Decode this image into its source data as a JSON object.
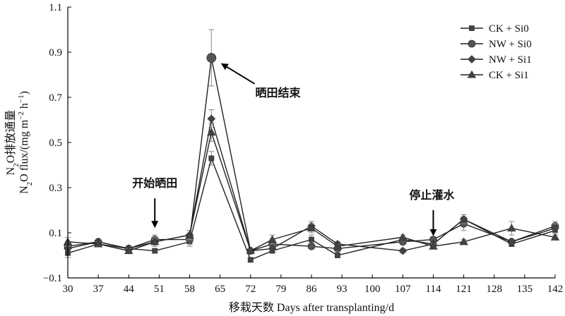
{
  "chart_data": {
    "type": "line",
    "xlabel": "移栽天数 Days after transplanting/d",
    "ylabel": {
      "line1": {
        "pre": "N",
        "sub": "2",
        "post": "O排放通量"
      },
      "line2": {
        "pre": "N",
        "sub": "2",
        "mid": "O flux/(mg m",
        "sup1": "−2",
        "mid2": " h",
        "sup2": "−1",
        "post": ")"
      }
    },
    "xlim": [
      30,
      142
    ],
    "ylim": [
      -0.1,
      1.1
    ],
    "xticks": [
      30,
      37,
      44,
      51,
      58,
      65,
      72,
      79,
      86,
      93,
      100,
      107,
      114,
      121,
      128,
      135,
      142
    ],
    "yticks": [
      -0.1,
      0.1,
      0.3,
      0.5,
      0.7,
      0.9,
      1.1
    ],
    "ytick_labels": [
      "−0.1",
      "0.1",
      "0.3",
      "0.5",
      "0.7",
      "0.9",
      "1.1"
    ],
    "grid": false,
    "legend_position": "top-right",
    "x": [
      30,
      37,
      44,
      50,
      58,
      63,
      72,
      77,
      86,
      92,
      107,
      114,
      121,
      132,
      142
    ],
    "series": [
      {
        "name": "CK + Si0",
        "marker": "square",
        "values": [
          0.01,
          0.05,
          0.03,
          0.02,
          0.06,
          0.43,
          -0.02,
          0.02,
          0.07,
          0.0,
          0.07,
          0.05,
          0.16,
          0.05,
          0.11
        ],
        "errors": [
          0.02,
          0.01,
          0.01,
          0.01,
          0.02,
          0.03,
          0.01,
          0.01,
          0.02,
          0.01,
          0.01,
          0.01,
          0.02,
          0.01,
          0.01
        ]
      },
      {
        "name": "NW + Si0",
        "marker": "circle",
        "values": [
          0.04,
          0.06,
          0.03,
          0.07,
          0.07,
          0.875,
          0.02,
          0.05,
          0.04,
          0.03,
          0.06,
          0.07,
          0.14,
          0.06,
          0.13
        ],
        "errors": [
          0.02,
          0.01,
          0.01,
          0.02,
          0.02,
          0.125,
          0.01,
          0.01,
          0.01,
          0.01,
          0.01,
          0.01,
          0.03,
          0.01,
          0.02
        ]
      },
      {
        "name": "NW + Si1",
        "marker": "diamond",
        "values": [
          0.03,
          0.06,
          0.03,
          0.06,
          0.09,
          0.605,
          0.02,
          0.03,
          0.13,
          0.05,
          0.02,
          0.05,
          0.16,
          0.06,
          0.12
        ],
        "errors": [
          0.01,
          0.01,
          0.01,
          0.02,
          0.02,
          0.04,
          0.01,
          0.01,
          0.02,
          0.01,
          0.01,
          0.01,
          0.02,
          0.01,
          0.02
        ]
      },
      {
        "name": "CK + Si1",
        "marker": "triangle",
        "values": [
          0.06,
          0.05,
          0.02,
          0.06,
          0.09,
          0.545,
          0.02,
          0.07,
          0.12,
          0.04,
          0.08,
          0.04,
          0.06,
          0.12,
          0.08
        ],
        "errors": [
          0.02,
          0.01,
          0.01,
          0.01,
          0.02,
          0.04,
          0.01,
          0.02,
          0.02,
          0.01,
          0.01,
          0.01,
          0.01,
          0.03,
          0.01
        ]
      }
    ],
    "annotations": [
      {
        "text": "开始晒田",
        "x": 50,
        "y": 0.09
      },
      {
        "text": "晒田结束",
        "x": 64.5,
        "y": 0.86
      },
      {
        "text": "停止灌水",
        "x": 114,
        "y": 0.06
      }
    ]
  }
}
